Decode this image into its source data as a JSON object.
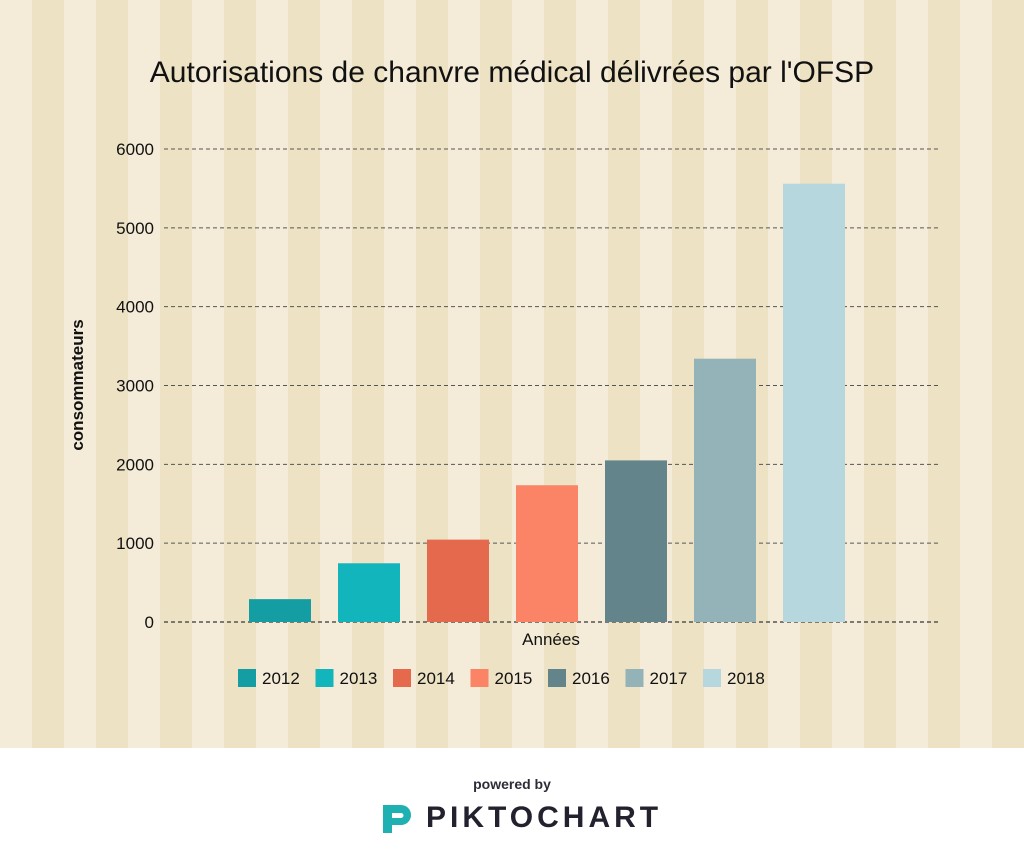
{
  "footer": {
    "powered_by": "powered by",
    "brand": "PIKTOCHART",
    "logo_icon": "piktochart-logo-icon",
    "logo_color": "#1fb0b2"
  },
  "colors": {
    "background_stripe_light": "#f4ecd8",
    "background_stripe_dark": "#ede2c4",
    "gridline": "#555555"
  },
  "chart_data": {
    "type": "bar",
    "title": "Autorisations de chanvre médical délivrées par l'OFSP",
    "xlabel": "Années",
    "ylabel": "consommateurs",
    "ylim": [
      0,
      6000
    ],
    "yticks": [
      0,
      1000,
      2000,
      3000,
      4000,
      5000,
      6000
    ],
    "grid": true,
    "legend_position": "bottom",
    "categories": [
      "2012",
      "2013",
      "2014",
      "2015",
      "2016",
      "2017",
      "2018"
    ],
    "values": [
      290,
      745,
      1045,
      1735,
      2050,
      3340,
      5560
    ],
    "colors": [
      "#149ea3",
      "#13b5bc",
      "#e56a4d",
      "#fb8467",
      "#63848a",
      "#93b3b9",
      "#b6d7de"
    ]
  }
}
